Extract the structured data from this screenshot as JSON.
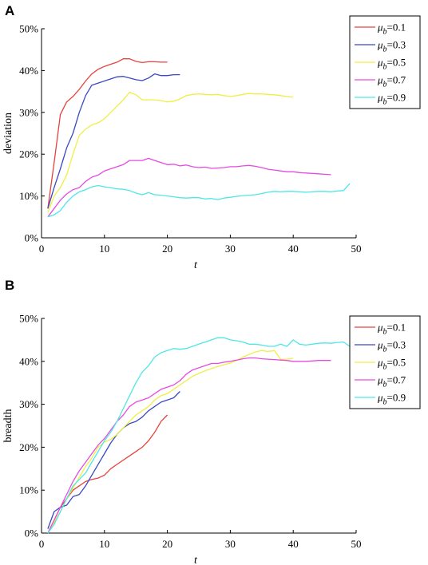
{
  "chart_data": [
    {
      "panel_label": "A",
      "type": "line",
      "xlabel": "t",
      "ylabel": "deviation",
      "xlim": [
        0,
        50
      ],
      "ylim": [
        0,
        50
      ],
      "xticks": [
        0,
        10,
        20,
        30,
        40,
        50
      ],
      "yticks": [
        0,
        10,
        20,
        30,
        40,
        50
      ],
      "yticklabels": [
        "0%",
        "10%",
        "20%",
        "30%",
        "40%",
        "50%"
      ],
      "legend_position": "top-right",
      "grid": false,
      "series": [
        {
          "name": "μ_b=0.1",
          "mu": "0.1",
          "color": "#e8413c",
          "x": [
            1,
            2,
            3,
            4,
            5,
            6,
            7,
            8,
            9,
            10,
            11,
            12,
            13,
            14,
            15,
            16,
            17,
            18,
            19,
            20
          ],
          "y": [
            7,
            18,
            29.5,
            32.5,
            33.8,
            35.5,
            37.5,
            39.2,
            40.3,
            41,
            41.5,
            42,
            42.8,
            42.8,
            42.2,
            41.9,
            42.1,
            42.1,
            42.0,
            42.0
          ]
        },
        {
          "name": "μ_b=0.3",
          "mu": "0.3",
          "color": "#3a48c4",
          "x": [
            1,
            2,
            3,
            4,
            5,
            6,
            7,
            8,
            9,
            10,
            11,
            12,
            13,
            14,
            15,
            16,
            17,
            18,
            19,
            20,
            21,
            22
          ],
          "y": [
            7,
            12,
            16.5,
            21.5,
            25,
            30,
            34,
            36.5,
            37,
            37.5,
            38,
            38.5,
            38.6,
            38.2,
            37.8,
            37.6,
            38.2,
            39.2,
            38.8,
            38.8,
            39.0,
            39.0
          ]
        },
        {
          "name": "μ_b=0.5",
          "mu": "0.5",
          "color": "#f0ee44",
          "x": [
            1,
            2,
            3,
            4,
            5,
            6,
            7,
            8,
            9,
            10,
            11,
            12,
            13,
            14,
            15,
            16,
            17,
            18,
            19,
            20,
            21,
            22,
            23,
            24,
            25,
            26,
            27,
            28,
            29,
            30,
            31,
            32,
            33,
            34,
            35,
            36,
            37,
            38,
            39,
            40
          ],
          "y": [
            6,
            10,
            12,
            15,
            20,
            24.5,
            26,
            27,
            27.5,
            28.5,
            30,
            31.5,
            33,
            34.8,
            34.2,
            33,
            33,
            33,
            32.8,
            32.5,
            32.7,
            33.2,
            34,
            34.3,
            34.4,
            34.3,
            34.2,
            34.3,
            34.0,
            33.8,
            34.0,
            34.3,
            34.5,
            34.4,
            34.4,
            34.3,
            34.2,
            34.0,
            33.8,
            33.6
          ]
        },
        {
          "name": "μ_b=0.7",
          "mu": "0.7",
          "color": "#e64be0",
          "x": [
            1,
            2,
            3,
            4,
            5,
            6,
            7,
            8,
            9,
            10,
            11,
            12,
            13,
            14,
            15,
            16,
            17,
            18,
            19,
            20,
            21,
            22,
            23,
            24,
            25,
            26,
            27,
            28,
            29,
            30,
            31,
            32,
            33,
            34,
            35,
            36,
            37,
            38,
            39,
            40,
            41,
            42,
            43,
            44,
            45,
            46
          ],
          "y": [
            5,
            7,
            9,
            10.5,
            11.5,
            12,
            13.5,
            14.5,
            15,
            16,
            16.5,
            17,
            17.5,
            18.5,
            18.5,
            18.5,
            19,
            18.5,
            18,
            17.5,
            17.6,
            17.2,
            17.4,
            17.0,
            16.8,
            16.9,
            16.6,
            16.7,
            16.8,
            17.0,
            17.0,
            17.2,
            17.3,
            17.1,
            16.8,
            16.4,
            16.2,
            16.0,
            15.8,
            15.8,
            15.6,
            15.5,
            15.4,
            15.3,
            15.2,
            15.1
          ]
        },
        {
          "name": "μ_b=0.9",
          "mu": "0.9",
          "color": "#4fe6e6",
          "x": [
            1,
            2,
            3,
            4,
            5,
            6,
            7,
            8,
            9,
            10,
            11,
            12,
            13,
            14,
            15,
            16,
            17,
            18,
            19,
            20,
            21,
            22,
            23,
            24,
            25,
            26,
            27,
            28,
            29,
            30,
            31,
            32,
            33,
            34,
            35,
            36,
            37,
            38,
            39,
            40,
            41,
            42,
            43,
            44,
            45,
            46,
            47,
            48,
            49
          ],
          "y": [
            5,
            5.5,
            6.5,
            8.5,
            10,
            11,
            11.5,
            12.2,
            12.5,
            12.2,
            12,
            11.7,
            11.6,
            11.3,
            10.7,
            10.3,
            10.8,
            10.3,
            10.2,
            10.0,
            9.8,
            9.6,
            9.5,
            9.6,
            9.6,
            9.3,
            9.4,
            9.1,
            9.5,
            9.7,
            9.9,
            10.1,
            10.2,
            10.3,
            10.6,
            10.9,
            11.1,
            11.0,
            11.1,
            11.1,
            11.0,
            10.9,
            11.0,
            11.1,
            11.1,
            11.0,
            11.2,
            11.3,
            13.0
          ]
        }
      ]
    },
    {
      "panel_label": "B",
      "type": "line",
      "xlabel": "t",
      "ylabel": "breadth",
      "xlim": [
        0,
        50
      ],
      "ylim": [
        0,
        50
      ],
      "xticks": [
        0,
        10,
        20,
        30,
        40,
        50
      ],
      "yticks": [
        0,
        10,
        20,
        30,
        40,
        50
      ],
      "yticklabels": [
        "0%",
        "10%",
        "20%",
        "30%",
        "40%",
        "50%"
      ],
      "legend_position": "right",
      "grid": false,
      "series": [
        {
          "name": "μ_b=0.1",
          "mu": "0.1",
          "color": "#e8413c",
          "x": [
            1,
            2,
            3,
            4,
            5,
            6,
            7,
            8,
            9,
            10,
            11,
            12,
            13,
            14,
            15,
            16,
            17,
            18,
            19,
            20
          ],
          "y": [
            0,
            3,
            6,
            8,
            10,
            11,
            12,
            12.5,
            12.8,
            13.5,
            15,
            16,
            17,
            18,
            19,
            20,
            21.5,
            23.5,
            26,
            27.5
          ]
        },
        {
          "name": "μ_b=0.3",
          "mu": "0.3",
          "color": "#3a48c4",
          "x": [
            1,
            2,
            3,
            4,
            5,
            6,
            7,
            8,
            9,
            10,
            11,
            12,
            13,
            14,
            15,
            16,
            17,
            18,
            19,
            20,
            21,
            22
          ],
          "y": [
            1,
            5,
            6,
            6.5,
            8.5,
            9,
            11,
            13.5,
            16,
            18.5,
            21,
            23,
            24.5,
            25.5,
            26,
            27,
            28.5,
            29.5,
            30.5,
            31,
            31.5,
            33
          ]
        },
        {
          "name": "μ_b=0.5",
          "mu": "0.5",
          "color": "#f0ee44",
          "x": [
            1,
            2,
            3,
            4,
            5,
            6,
            7,
            8,
            9,
            10,
            11,
            12,
            13,
            14,
            15,
            16,
            17,
            18,
            19,
            20,
            21,
            22,
            23,
            24,
            25,
            26,
            27,
            28,
            29,
            30,
            31,
            32,
            33,
            34,
            35,
            36,
            37,
            38,
            39,
            40
          ],
          "y": [
            0,
            2.5,
            5,
            8,
            10.5,
            13,
            15.5,
            17.5,
            20,
            21.2,
            21.8,
            23,
            24.5,
            26,
            27.5,
            28.5,
            29.5,
            31,
            32,
            32.5,
            33.5,
            34.5,
            35.5,
            36.5,
            37.2,
            37.8,
            38.3,
            38.8,
            39.2,
            39.6,
            40.2,
            41,
            41.6,
            42.2,
            42.5,
            42.3,
            42.5,
            40.5,
            40.5,
            40.7
          ]
        },
        {
          "name": "μ_b=0.7",
          "mu": "0.7",
          "color": "#e64be0",
          "x": [
            1,
            2,
            3,
            4,
            5,
            6,
            7,
            8,
            9,
            10,
            11,
            12,
            13,
            14,
            15,
            16,
            17,
            18,
            19,
            20,
            21,
            22,
            23,
            24,
            25,
            26,
            27,
            28,
            29,
            30,
            31,
            32,
            33,
            34,
            35,
            36,
            37,
            38,
            39,
            40,
            41,
            42,
            43,
            44,
            45,
            46
          ],
          "y": [
            0,
            3,
            6,
            9,
            12,
            14.5,
            16.5,
            18.5,
            20.5,
            22,
            24,
            26,
            27.5,
            29.5,
            30.5,
            31,
            31.5,
            32.5,
            33.5,
            34,
            34.5,
            35.5,
            37,
            38,
            38.5,
            39,
            39.5,
            39.5,
            39.8,
            40,
            40.3,
            40.6,
            40.8,
            40.8,
            40.6,
            40.5,
            40.4,
            40.3,
            40.2,
            40.0,
            40.0,
            40.0,
            40.1,
            40.2,
            40.2,
            40.2
          ]
        },
        {
          "name": "μ_b=0.9",
          "mu": "0.9",
          "color": "#4fe6e6",
          "x": [
            1,
            2,
            3,
            4,
            5,
            6,
            7,
            8,
            9,
            10,
            11,
            12,
            13,
            14,
            15,
            16,
            17,
            18,
            19,
            20,
            21,
            22,
            23,
            24,
            25,
            26,
            27,
            28,
            29,
            30,
            31,
            32,
            33,
            34,
            35,
            36,
            37,
            38,
            39,
            40,
            41,
            42,
            43,
            44,
            45,
            46,
            47,
            48,
            49
          ],
          "y": [
            0,
            2,
            5,
            8,
            11,
            12.5,
            14,
            16.5,
            19,
            21.5,
            23.5,
            26,
            29,
            32,
            35,
            37.5,
            39,
            41,
            42,
            42.5,
            43,
            42.8,
            43,
            43.5,
            44,
            44.5,
            45,
            45.5,
            45.5,
            45,
            44.8,
            44.5,
            44,
            44,
            43.8,
            43.5,
            43.5,
            44,
            43.5,
            45,
            44,
            43.8,
            44,
            44.2,
            44.3,
            44.2,
            44.4,
            44.5,
            43.5
          ]
        }
      ]
    }
  ]
}
